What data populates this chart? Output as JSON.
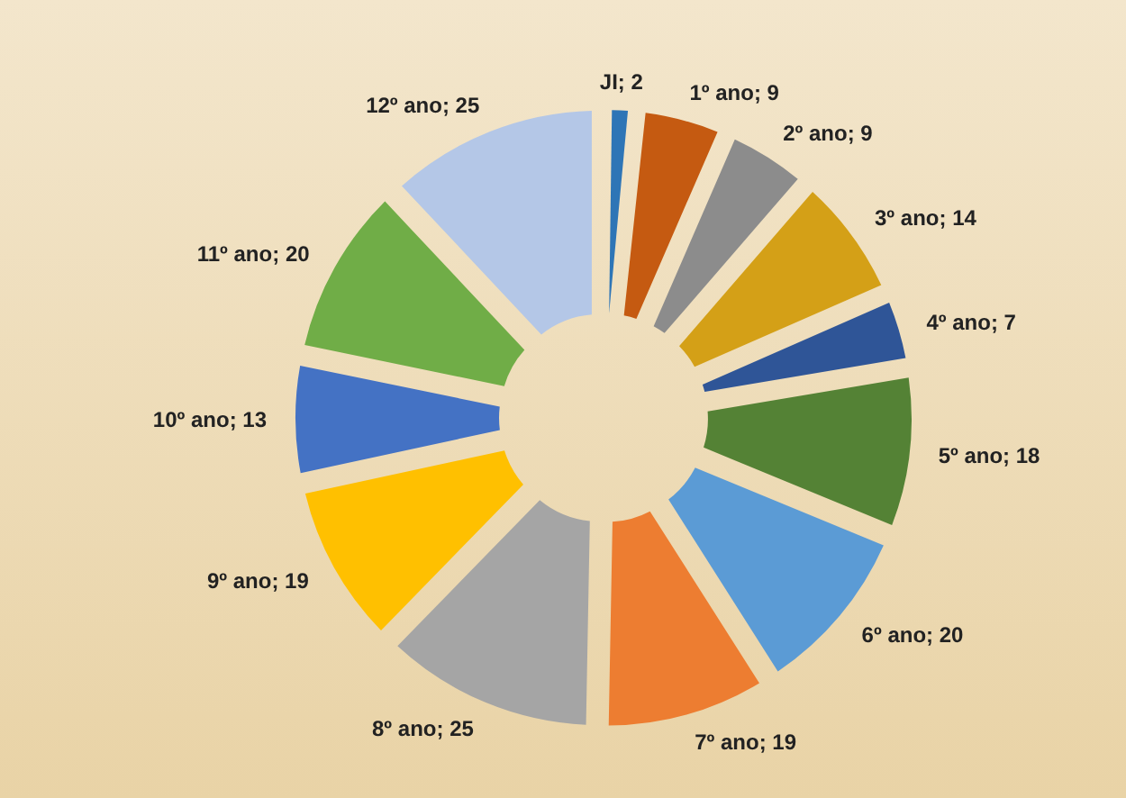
{
  "chart_data": {
    "type": "donut",
    "categories": [
      "JI",
      "1º ano",
      "2º ano",
      "3º ano",
      "4º ano",
      "5º ano",
      "6º ano",
      "7º ano",
      "8º ano",
      "9º ano",
      "10º ano",
      "11º ano",
      "12º ano"
    ],
    "values": [
      2,
      9,
      9,
      14,
      7,
      18,
      20,
      19,
      25,
      19,
      13,
      20,
      25
    ],
    "colors": [
      "#2e75b6",
      "#c55a11",
      "#8c8c8c",
      "#d4a017",
      "#2f5597",
      "#548235",
      "#5b9bd5",
      "#ed7d31",
      "#a5a5a5",
      "#ffc000",
      "#4472c4",
      "#70ad47",
      "#b4c7e7"
    ],
    "value_labels": [
      "; 2",
      "; 9",
      "; 9",
      "; 14",
      "; 7",
      "; 18",
      "; 20",
      "; 19",
      "; 25",
      "; 19",
      "; 13",
      "; 20",
      "; 25"
    ]
  }
}
